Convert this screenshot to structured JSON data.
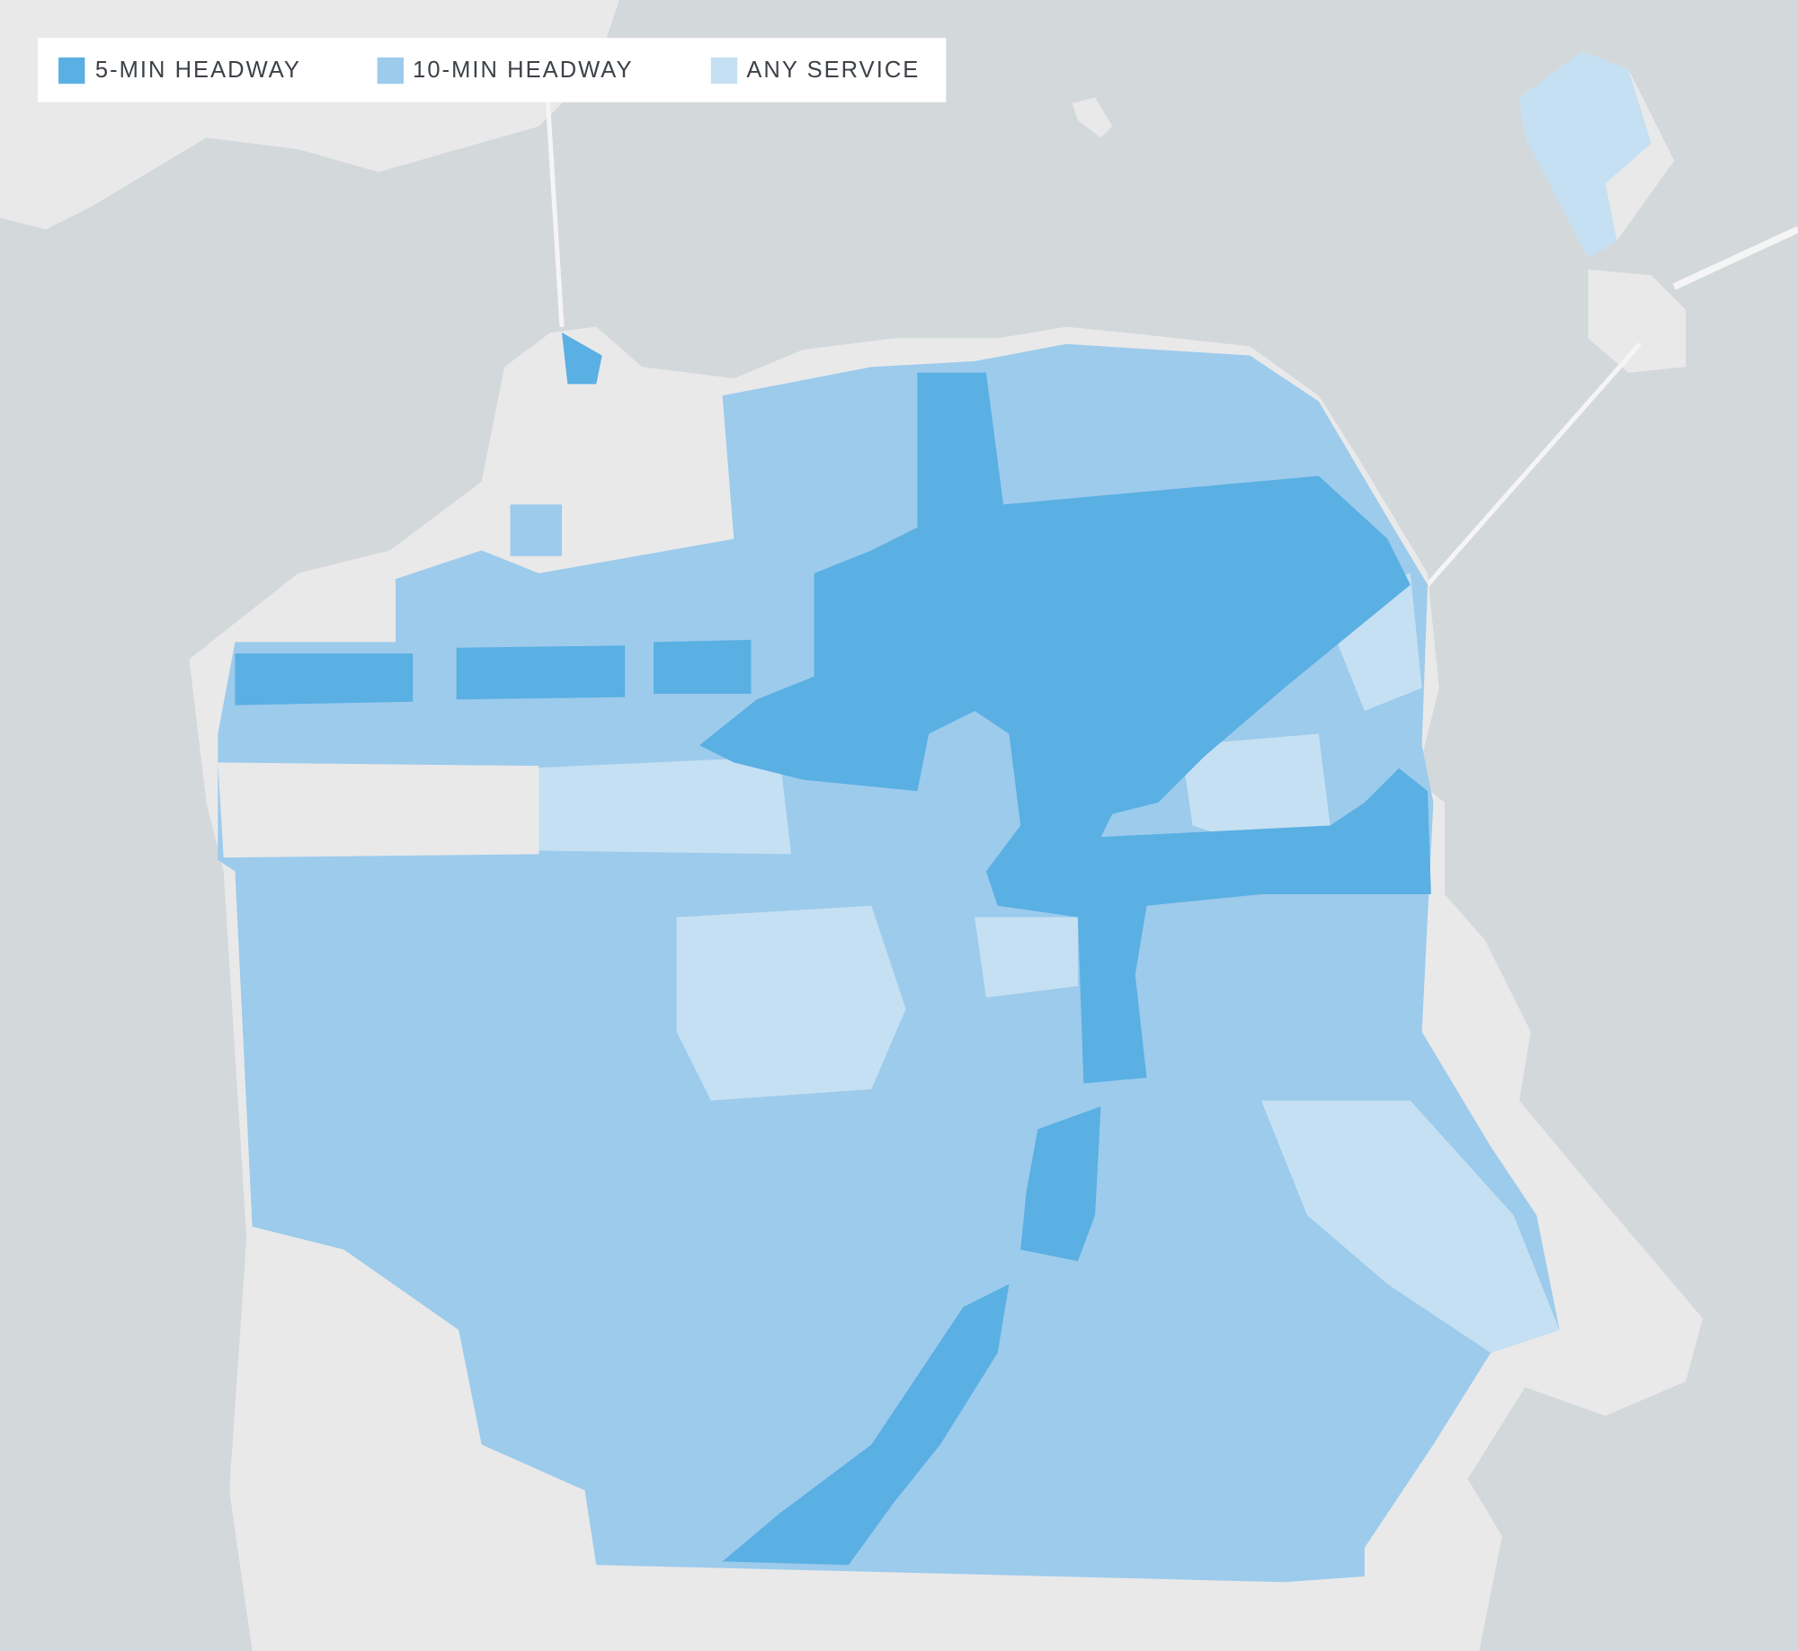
{
  "legend": {
    "items": [
      {
        "label": "5-MIN HEADWAY",
        "color": "#5aafe3"
      },
      {
        "label": "10-MIN HEADWAY",
        "color": "#9ccbec"
      },
      {
        "label": "ANY SERVICE",
        "color": "#c5e0f2"
      }
    ]
  }
}
